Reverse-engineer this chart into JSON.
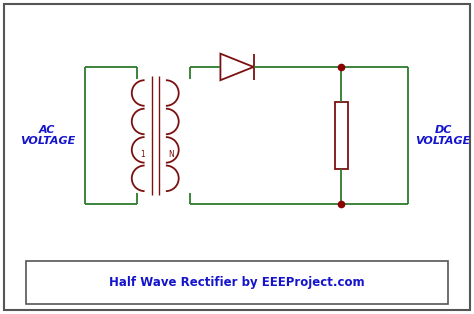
{
  "bg_color": "#ffffff",
  "circuit_color": "#2d7a2d",
  "component_color": "#7B1010",
  "dot_color": "#8B0000",
  "text_color": "#1414CC",
  "caption_color": "#1414CC",
  "outer_border_color": "#555555",
  "caption_box_color": "#555555",
  "caption_text": "Half Wave Rectifier by EEEProject.com",
  "ac_label": "AC\nVOLTAGE",
  "dc_label": "DC\nVOLTAGE",
  "caption_fontsize": 8.5,
  "label_fontsize": 8
}
